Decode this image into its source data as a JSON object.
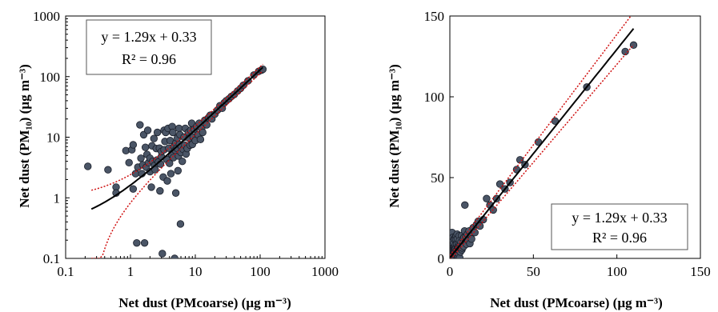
{
  "chart_data": [
    {
      "type": "scatter",
      "scale": "log",
      "xlabel": "Net dust (PMcoarse) (µg m⁻³)",
      "ylabel": "Net dust (PM₁₀) (µg m⁻³)",
      "xlim": [
        0.1,
        1000
      ],
      "ylim": [
        0.1,
        1000
      ],
      "x_ticks": [
        "0.1",
        "1",
        "10",
        "100",
        "1000"
      ],
      "y_ticks": [
        "0.1",
        "1",
        "10",
        "100",
        "1000"
      ],
      "annotation": {
        "equation": "y = 1.29x + 0.33",
        "r2": "R² = 0.96",
        "position": "top-left"
      },
      "fit": {
        "slope": 1.29,
        "intercept": 0.33,
        "x_range": [
          0.25,
          110
        ]
      },
      "conf_band": {
        "rel_width": 0.12,
        "abs_width": 0.6
      },
      "colors": {
        "points": "#4a5566",
        "point_edge": "#1a1f2a",
        "fit": "#000000",
        "band": "#d01010"
      },
      "points": [
        [
          0.22,
          3.3
        ],
        [
          0.45,
          2.9
        ],
        [
          0.6,
          1.5
        ],
        [
          0.6,
          1.2
        ],
        [
          0.85,
          6
        ],
        [
          0.95,
          3.8
        ],
        [
          1.05,
          6.2
        ],
        [
          1.1,
          7.5
        ],
        [
          1.1,
          1.4
        ],
        [
          1.2,
          2.5
        ],
        [
          1.25,
          0.18
        ],
        [
          1.3,
          3.2
        ],
        [
          1.4,
          16
        ],
        [
          1.45,
          4.5
        ],
        [
          1.5,
          2.5
        ],
        [
          1.55,
          3.5
        ],
        [
          1.6,
          11
        ],
        [
          1.65,
          0.18
        ],
        [
          1.7,
          6.8
        ],
        [
          1.75,
          3.2
        ],
        [
          1.8,
          5.2
        ],
        [
          1.85,
          13
        ],
        [
          1.9,
          3.8
        ],
        [
          2.0,
          2.7
        ],
        [
          2.0,
          4.5
        ],
        [
          2.1,
          1.5
        ],
        [
          2.15,
          7.2
        ],
        [
          2.2,
          4.0
        ],
        [
          2.3,
          9.5
        ],
        [
          2.35,
          3.4
        ],
        [
          2.4,
          2.9
        ],
        [
          2.5,
          6.5
        ],
        [
          2.55,
          4.2
        ],
        [
          2.6,
          12
        ],
        [
          2.7,
          3.9
        ],
        [
          2.8,
          6.6
        ],
        [
          2.85,
          1.3
        ],
        [
          2.9,
          3.6
        ],
        [
          3.0,
          4.8
        ],
        [
          3.0,
          5.8
        ],
        [
          3.1,
          0.12
        ],
        [
          3.2,
          2.2
        ],
        [
          3.3,
          13
        ],
        [
          3.3,
          6.2
        ],
        [
          3.4,
          8.5
        ],
        [
          3.5,
          12
        ],
        [
          3.6,
          4.3
        ],
        [
          3.7,
          1.9
        ],
        [
          3.8,
          14
        ],
        [
          3.9,
          6.6
        ],
        [
          4.0,
          3.7
        ],
        [
          4.1,
          8.8
        ],
        [
          4.2,
          2.5
        ],
        [
          4.3,
          5.2
        ],
        [
          4.4,
          15
        ],
        [
          4.5,
          12
        ],
        [
          4.6,
          4.6
        ],
        [
          4.7,
          7.0
        ],
        [
          4.8,
          0.1
        ],
        [
          4.9,
          6.1
        ],
        [
          5.0,
          1.2
        ],
        [
          5.0,
          8.0
        ],
        [
          5.2,
          6.6
        ],
        [
          5.3,
          9.7
        ],
        [
          5.4,
          2.8
        ],
        [
          5.5,
          4.9
        ],
        [
          5.6,
          14
        ],
        [
          5.7,
          7.6
        ],
        [
          5.8,
          11
        ],
        [
          5.9,
          0.37
        ],
        [
          6.0,
          5.6
        ],
        [
          6.1,
          7.0
        ],
        [
          6.3,
          4.0
        ],
        [
          6.5,
          6.3
        ],
        [
          6.7,
          10
        ],
        [
          6.9,
          7.4
        ],
        [
          7.0,
          14
        ],
        [
          7.2,
          5.3
        ],
        [
          7.5,
          6.5
        ],
        [
          7.8,
          12
        ],
        [
          8.0,
          9.6
        ],
        [
          8.3,
          7.4
        ],
        [
          8.5,
          13
        ],
        [
          8.8,
          17
        ],
        [
          9.0,
          7.6
        ],
        [
          9.3,
          10
        ],
        [
          9.6,
          13.5
        ],
        [
          10,
          8.8
        ],
        [
          10.5,
          15
        ],
        [
          11,
          11
        ],
        [
          11.5,
          17
        ],
        [
          12,
          9.2
        ],
        [
          12.5,
          14
        ],
        [
          13,
          12
        ],
        [
          14,
          19
        ],
        [
          15,
          16
        ],
        [
          16,
          21
        ],
        [
          17,
          23
        ],
        [
          18,
          20
        ],
        [
          20,
          24
        ],
        [
          22,
          28
        ],
        [
          24,
          33
        ],
        [
          26,
          30
        ],
        [
          28,
          37
        ],
        [
          30,
          40
        ],
        [
          33,
          43
        ],
        [
          36,
          47
        ],
        [
          40,
          51
        ],
        [
          45,
          58
        ],
        [
          50,
          64
        ],
        [
          55,
          72
        ],
        [
          65,
          85
        ],
        [
          80,
          106
        ],
        [
          95,
          122
        ],
        [
          105,
          128
        ],
        [
          110,
          132
        ]
      ]
    },
    {
      "type": "scatter",
      "scale": "linear",
      "xlabel": "Net dust (PMcoarse) (µg m⁻³)",
      "ylabel": "Net dust (PM₁₀) (µg m⁻³)",
      "xlim": [
        0,
        150
      ],
      "ylim": [
        0,
        150
      ],
      "x_ticks": [
        "0",
        "50",
        "100",
        "150"
      ],
      "y_ticks": [
        "0",
        "50",
        "100",
        "150"
      ],
      "annotation": {
        "equation": "y = 1.29x + 0.33",
        "r2": "R² = 0.96",
        "position": "bottom-right"
      },
      "fit": {
        "slope": 1.29,
        "intercept": 0.33,
        "x_range": [
          0,
          110
        ]
      },
      "conf_band": {
        "rel_width": 0.06,
        "abs_width": 1.5
      },
      "colors": {
        "points": "#4a5566",
        "point_edge": "#1a1f2a",
        "fit": "#000000",
        "band": "#d01010"
      },
      "points": [
        [
          0.2,
          3.3
        ],
        [
          0.4,
          2.9
        ],
        [
          0.6,
          1.5
        ],
        [
          0.6,
          1.2
        ],
        [
          0.8,
          6
        ],
        [
          1.0,
          3.8
        ],
        [
          1.0,
          6.2
        ],
        [
          1.1,
          7.5
        ],
        [
          1.1,
          1.4
        ],
        [
          1.2,
          2.5
        ],
        [
          1.3,
          0.2
        ],
        [
          1.3,
          3.2
        ],
        [
          1.4,
          16
        ],
        [
          1.5,
          4.5
        ],
        [
          1.5,
          2.5
        ],
        [
          1.6,
          3.5
        ],
        [
          1.6,
          11
        ],
        [
          1.7,
          0.2
        ],
        [
          1.7,
          6.8
        ],
        [
          1.8,
          3.2
        ],
        [
          1.8,
          5.2
        ],
        [
          1.9,
          13
        ],
        [
          1.9,
          3.8
        ],
        [
          2.0,
          2.7
        ],
        [
          2.0,
          4.5
        ],
        [
          2.1,
          1.5
        ],
        [
          2.2,
          7.2
        ],
        [
          2.2,
          4.0
        ],
        [
          2.3,
          9.5
        ],
        [
          2.4,
          3.4
        ],
        [
          2.4,
          2.9
        ],
        [
          2.5,
          6.5
        ],
        [
          2.6,
          4.2
        ],
        [
          2.6,
          12
        ],
        [
          2.7,
          3.9
        ],
        [
          2.8,
          6.6
        ],
        [
          2.9,
          1.3
        ],
        [
          2.9,
          3.6
        ],
        [
          3.0,
          4.8
        ],
        [
          3.0,
          5.8
        ],
        [
          3.1,
          0.1
        ],
        [
          3.2,
          2.2
        ],
        [
          3.3,
          13
        ],
        [
          3.3,
          6.2
        ],
        [
          3.4,
          8.5
        ],
        [
          3.5,
          12
        ],
        [
          3.6,
          4.3
        ],
        [
          3.7,
          1.9
        ],
        [
          3.8,
          14
        ],
        [
          3.9,
          6.6
        ],
        [
          4.0,
          3.7
        ],
        [
          4.1,
          8.8
        ],
        [
          4.2,
          2.5
        ],
        [
          4.3,
          5.2
        ],
        [
          4.4,
          15
        ],
        [
          4.5,
          12
        ],
        [
          4.6,
          4.6
        ],
        [
          4.7,
          7.0
        ],
        [
          4.8,
          0.1
        ],
        [
          4.9,
          6.1
        ],
        [
          5.0,
          1.2
        ],
        [
          5.0,
          8.0
        ],
        [
          5.2,
          6.6
        ],
        [
          5.3,
          9.7
        ],
        [
          5.4,
          2.8
        ],
        [
          5.5,
          4.9
        ],
        [
          5.6,
          14
        ],
        [
          5.7,
          7.6
        ],
        [
          5.8,
          11
        ],
        [
          5.9,
          0.4
        ],
        [
          6.0,
          5.6
        ],
        [
          6.1,
          7.0
        ],
        [
          6.3,
          4.0
        ],
        [
          6.5,
          6.3
        ],
        [
          6.7,
          10
        ],
        [
          6.9,
          7.4
        ],
        [
          7.0,
          14
        ],
        [
          7.2,
          5.3
        ],
        [
          7.5,
          6.5
        ],
        [
          7.8,
          12
        ],
        [
          8.0,
          9.6
        ],
        [
          8.3,
          7.4
        ],
        [
          8.5,
          13
        ],
        [
          8.8,
          17
        ],
        [
          9.0,
          33
        ],
        [
          9.3,
          10
        ],
        [
          9.6,
          13.5
        ],
        [
          10,
          8.8
        ],
        [
          10.5,
          15
        ],
        [
          11,
          11
        ],
        [
          11.5,
          17
        ],
        [
          12,
          9.2
        ],
        [
          12.5,
          14
        ],
        [
          13,
          12
        ],
        [
          14,
          19
        ],
        [
          15,
          16
        ],
        [
          16,
          21
        ],
        [
          17,
          23
        ],
        [
          18,
          20
        ],
        [
          20,
          24
        ],
        [
          22,
          37
        ],
        [
          24,
          33
        ],
        [
          26,
          30
        ],
        [
          28,
          37
        ],
        [
          30,
          46
        ],
        [
          33,
          43
        ],
        [
          36,
          47
        ],
        [
          40,
          55
        ],
        [
          42,
          61
        ],
        [
          45,
          58
        ],
        [
          53,
          72
        ],
        [
          63,
          85
        ],
        [
          82,
          106
        ],
        [
          105,
          128
        ],
        [
          110,
          132
        ]
      ]
    }
  ]
}
